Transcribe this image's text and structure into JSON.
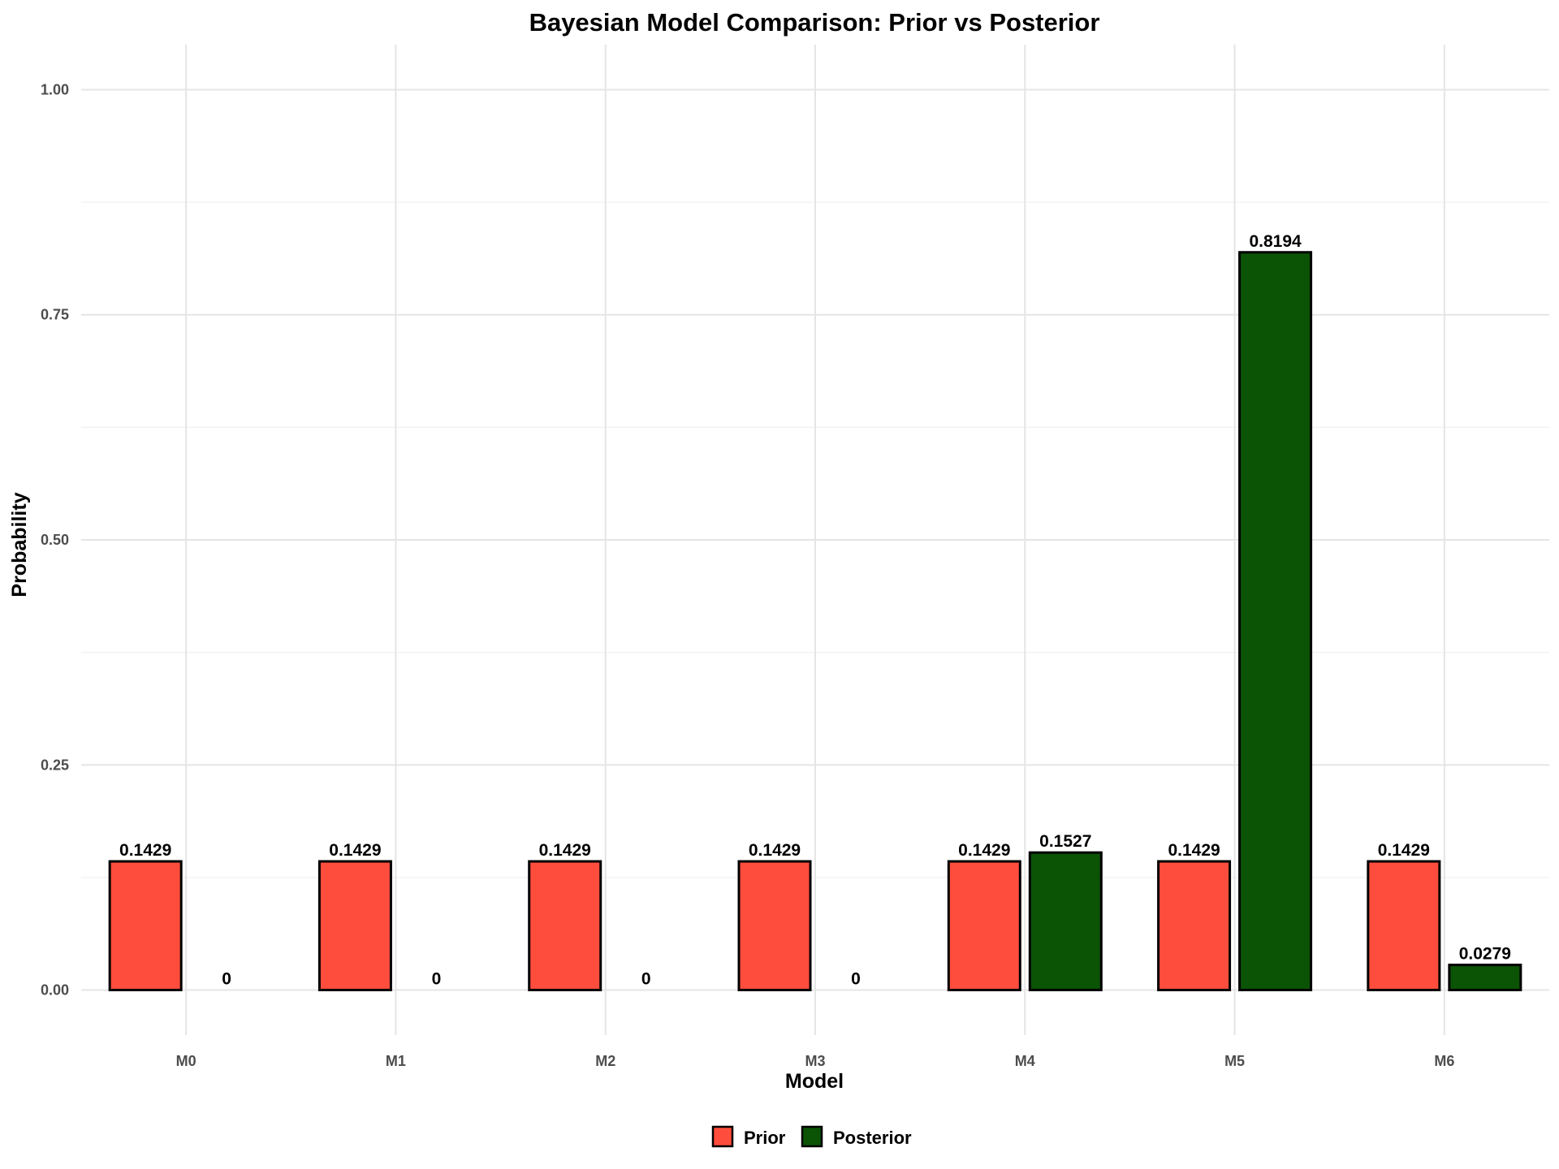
{
  "chart_data": {
    "type": "bar",
    "title": "Bayesian Model Comparison: Prior vs Posterior",
    "xlabel": "Model",
    "ylabel": "Probability",
    "categories": [
      "M0",
      "M1",
      "M2",
      "M3",
      "M4",
      "M5",
      "M6"
    ],
    "series": [
      {
        "name": "Prior",
        "color": "#ff4d3d",
        "values": [
          0.1429,
          0.1429,
          0.1429,
          0.1429,
          0.1429,
          0.1429,
          0.1429
        ],
        "labels": [
          "0.1429",
          "0.1429",
          "0.1429",
          "0.1429",
          "0.1429",
          "0.1429",
          "0.1429"
        ]
      },
      {
        "name": "Posterior",
        "color": "#0b5305",
        "values": [
          0,
          0,
          0,
          0,
          0.1527,
          0.8194,
          0.0279
        ],
        "labels": [
          "0",
          "0",
          "0",
          "0",
          "0.1527",
          "0.8194",
          "0.0279"
        ]
      }
    ],
    "ylim": [
      -0.05,
      1.05
    ],
    "yticks": [
      0.0,
      0.25,
      0.5,
      0.75,
      1.0
    ],
    "ytick_labels": [
      "0.00",
      "0.25",
      "0.50",
      "0.75",
      "1.00"
    ],
    "grid": true,
    "legend_position": "bottom",
    "bar_outline_color": "#000000"
  }
}
